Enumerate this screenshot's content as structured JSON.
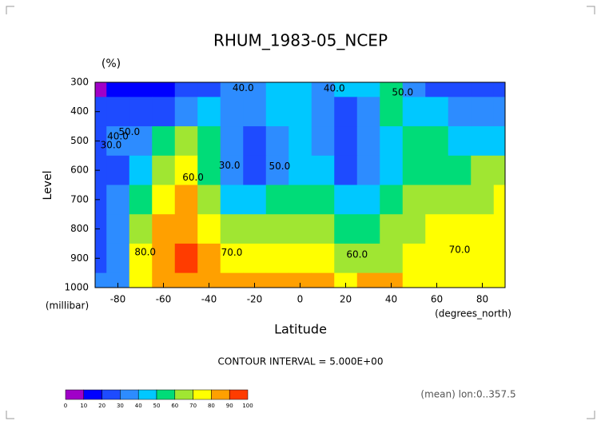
{
  "chart_data": {
    "type": "contour",
    "title": "RHUM_1983-05_NCEP",
    "unit_label": "(%)",
    "y_label": "Level",
    "y_unit": "(millibar)",
    "x_label": "Latitude",
    "x_unit": "(degrees_north)",
    "footer": "CONTOUR INTERVAL = 5.000E+00",
    "note": "(mean) lon:0..357.5",
    "x": [
      -90,
      -80,
      -70,
      -60,
      -50,
      -40,
      -30,
      -20,
      -10,
      0,
      10,
      20,
      30,
      40,
      50,
      60,
      70,
      80,
      90
    ],
    "y": [
      300,
      400,
      500,
      600,
      700,
      800,
      900,
      1000
    ],
    "z": [
      [
        5,
        15,
        15,
        18,
        20,
        25,
        35,
        38,
        45,
        45,
        38,
        40,
        45,
        50,
        35,
        25,
        25,
        20,
        20
      ],
      [
        25,
        25,
        25,
        28,
        35,
        40,
        32,
        30,
        40,
        45,
        35,
        25,
        35,
        50,
        45,
        40,
        38,
        35,
        30
      ],
      [
        25,
        30,
        35,
        55,
        65,
        50,
        30,
        25,
        35,
        45,
        35,
        22,
        30,
        45,
        50,
        50,
        45,
        45,
        45
      ],
      [
        25,
        28,
        40,
        65,
        75,
        55,
        30,
        25,
        35,
        45,
        40,
        28,
        30,
        45,
        55,
        58,
        55,
        60,
        65
      ],
      [
        25,
        30,
        55,
        75,
        82,
        65,
        45,
        40,
        50,
        55,
        55,
        40,
        40,
        50,
        60,
        65,
        65,
        68,
        72
      ],
      [
        25,
        30,
        65,
        85,
        82,
        75,
        65,
        60,
        65,
        65,
        62,
        52,
        55,
        60,
        65,
        70,
        72,
        75,
        75
      ],
      [
        25,
        30,
        72,
        88,
        95,
        80,
        72,
        72,
        75,
        75,
        70,
        62,
        65,
        68,
        72,
        78,
        75,
        73,
        75
      ],
      [
        30,
        30,
        75,
        85,
        85,
        82,
        80,
        80,
        82,
        82,
        80,
        78,
        80,
        80,
        78,
        78,
        78,
        78,
        78
      ]
    ],
    "xlim": [
      -90,
      90
    ],
    "xticks": [
      -80,
      -60,
      -40,
      -20,
      0,
      20,
      40,
      60,
      80
    ],
    "ylim": [
      1000,
      300
    ],
    "yticks": [
      300,
      400,
      500,
      600,
      700,
      800,
      900,
      1000
    ],
    "contour_labels": [
      {
        "value": 40,
        "label": "40.0"
      },
      {
        "value": 40,
        "label": "40.0"
      },
      {
        "value": 50,
        "label": "50.0"
      },
      {
        "value": 30,
        "label": "30.0"
      },
      {
        "value": 40,
        "label": "40.0"
      },
      {
        "value": 50,
        "label": "50.0"
      },
      {
        "value": 30,
        "label": "30.0"
      },
      {
        "value": 60,
        "label": "60.0"
      },
      {
        "value": 50,
        "label": "50.0"
      },
      {
        "value": 80,
        "label": "80.0"
      },
      {
        "value": 70,
        "label": "70.0"
      },
      {
        "value": 60,
        "label": "60.0"
      },
      {
        "value": 70,
        "label": "70.0"
      }
    ],
    "levels": [
      0,
      10,
      20,
      30,
      40,
      50,
      60,
      70,
      80,
      90,
      100
    ],
    "colors": [
      "#a000c8",
      "#0000ff",
      "#1e4bff",
      "#2d8cff",
      "#00c8ff",
      "#00dc78",
      "#a0e632",
      "#ffff00",
      "#ffa000",
      "#ff3c00"
    ]
  }
}
